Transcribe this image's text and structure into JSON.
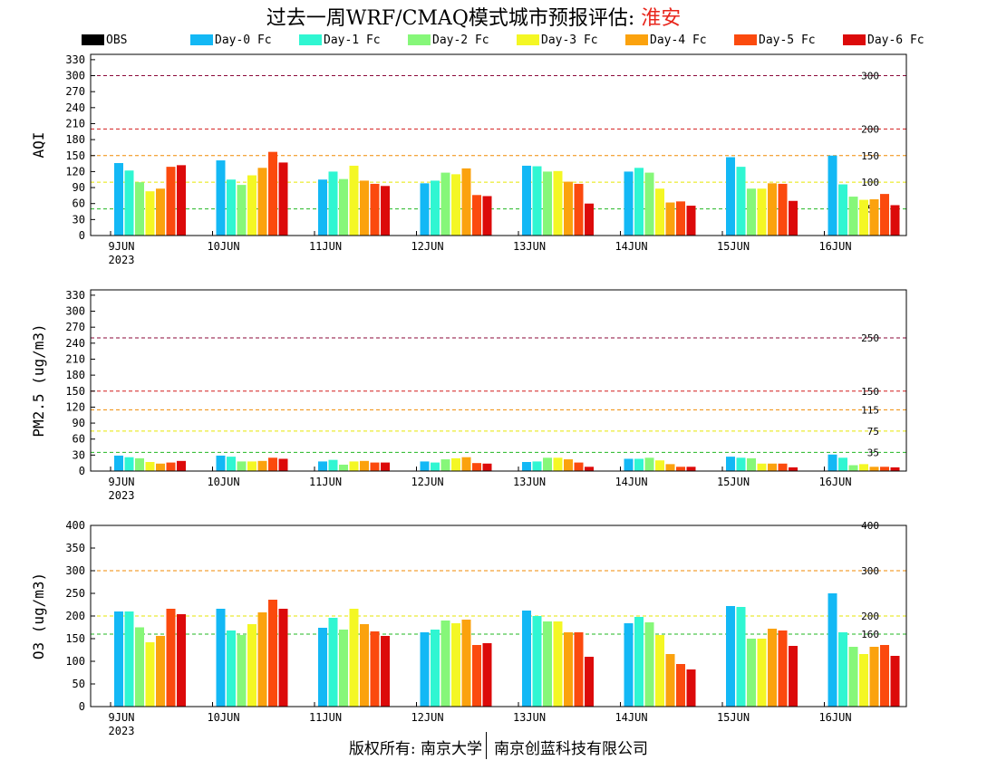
{
  "header": {
    "title_prefix": "过去一周WRF/CMAQ模式城市预报评估: ",
    "city": "淮安"
  },
  "legend": [
    {
      "name": "OBS",
      "color": "#000000"
    },
    {
      "name": "Day-0 Fc",
      "color": "#13b8f5"
    },
    {
      "name": "Day-1 Fc",
      "color": "#30f6d2"
    },
    {
      "name": "Day-2 Fc",
      "color": "#86f779"
    },
    {
      "name": "Day-3 Fc",
      "color": "#f4f724"
    },
    {
      "name": "Day-4 Fc",
      "color": "#fba20e"
    },
    {
      "name": "Day-5 Fc",
      "color": "#fb4a0e"
    },
    {
      "name": "Day-6 Fc",
      "color": "#dc0a0a"
    }
  ],
  "footer": {
    "left": "版权所有: 南京大学",
    "right": "南京创蓝科技有限公司"
  },
  "chart_data": [
    {
      "type": "bar",
      "ylabel": "AQI",
      "ylim": [
        0,
        340
      ],
      "yticks": [
        0,
        30,
        60,
        90,
        120,
        150,
        180,
        210,
        240,
        270,
        300,
        330
      ],
      "categories": [
        "9JUN",
        "10JUN",
        "11JUN",
        "12JUN",
        "13JUN",
        "14JUN",
        "15JUN",
        "16JUN"
      ],
      "first_category_year": "2023",
      "thresholds": [
        {
          "value": 50,
          "label": "50",
          "color": "#22b822"
        },
        {
          "value": 100,
          "label": "100",
          "color": "#e6e600"
        },
        {
          "value": 150,
          "label": "150",
          "color": "#f08a00"
        },
        {
          "value": 200,
          "label": "200",
          "color": "#d21c1c"
        },
        {
          "value": 300,
          "label": "300",
          "color": "#8b0a3a"
        }
      ],
      "series": [
        {
          "name": "OBS",
          "values": [
            null,
            null,
            null,
            null,
            null,
            null,
            null,
            null
          ]
        },
        {
          "name": "Day-0 Fc",
          "values": [
            136,
            141,
            105,
            98,
            131,
            120,
            147,
            150
          ]
        },
        {
          "name": "Day-1 Fc",
          "values": [
            122,
            105,
            120,
            103,
            130,
            127,
            129,
            96
          ]
        },
        {
          "name": "Day-2 Fc",
          "values": [
            100,
            95,
            106,
            118,
            120,
            118,
            88,
            73
          ]
        },
        {
          "name": "Day-3 Fc",
          "values": [
            83,
            113,
            131,
            115,
            121,
            88,
            88,
            67
          ]
        },
        {
          "name": "Day-4 Fc",
          "values": [
            88,
            127,
            103,
            126,
            101,
            62,
            98,
            68
          ]
        },
        {
          "name": "Day-5 Fc",
          "values": [
            129,
            157,
            97,
            76,
            97,
            64,
            97,
            78
          ]
        },
        {
          "name": "Day-6 Fc",
          "values": [
            132,
            137,
            93,
            74,
            60,
            56,
            65,
            57
          ]
        }
      ]
    },
    {
      "type": "bar",
      "ylabel": "PM2.5 (ug/m3)",
      "ylim": [
        0,
        340
      ],
      "yticks": [
        0,
        30,
        60,
        90,
        120,
        150,
        180,
        210,
        240,
        270,
        300,
        330
      ],
      "categories": [
        "9JUN",
        "10JUN",
        "11JUN",
        "12JUN",
        "13JUN",
        "14JUN",
        "15JUN",
        "16JUN"
      ],
      "first_category_year": "2023",
      "thresholds": [
        {
          "value": 35,
          "label": "35",
          "color": "#22b822"
        },
        {
          "value": 75,
          "label": "75",
          "color": "#e6e600"
        },
        {
          "value": 115,
          "label": "115",
          "color": "#f08a00"
        },
        {
          "value": 150,
          "label": "150",
          "color": "#d21c1c"
        },
        {
          "value": 250,
          "label": "250",
          "color": "#8b0a3a"
        }
      ],
      "series": [
        {
          "name": "OBS",
          "values": [
            null,
            null,
            null,
            null,
            null,
            null,
            null,
            null
          ]
        },
        {
          "name": "Day-0 Fc",
          "values": [
            29,
            29,
            18,
            18,
            17,
            23,
            27,
            31
          ]
        },
        {
          "name": "Day-1 Fc",
          "values": [
            26,
            27,
            21,
            16,
            18,
            23,
            25,
            25
          ]
        },
        {
          "name": "Day-2 Fc",
          "values": [
            24,
            18,
            12,
            22,
            25,
            25,
            24,
            11
          ]
        },
        {
          "name": "Day-3 Fc",
          "values": [
            17,
            18,
            18,
            24,
            25,
            20,
            14,
            13
          ]
        },
        {
          "name": "Day-4 Fc",
          "values": [
            14,
            19,
            19,
            26,
            22,
            13,
            14,
            8
          ]
        },
        {
          "name": "Day-5 Fc",
          "values": [
            16,
            25,
            16,
            15,
            16,
            8,
            14,
            8
          ]
        },
        {
          "name": "Day-6 Fc",
          "values": [
            19,
            23,
            16,
            14,
            8,
            8,
            7,
            7
          ]
        }
      ]
    },
    {
      "type": "bar",
      "ylabel": "O3 (ug/m3)",
      "ylim": [
        0,
        400
      ],
      "yticks": [
        0,
        50,
        100,
        150,
        200,
        250,
        300,
        350,
        400
      ],
      "categories": [
        "9JUN",
        "10JUN",
        "11JUN",
        "12JUN",
        "13JUN",
        "14JUN",
        "15JUN",
        "16JUN"
      ],
      "first_category_year": "2023",
      "thresholds": [
        {
          "value": 160,
          "label": "160",
          "color": "#22b822"
        },
        {
          "value": 200,
          "label": "200",
          "color": "#e6e600"
        },
        {
          "value": 300,
          "label": "300",
          "color": "#f08a00"
        },
        {
          "value": 400,
          "label": "400",
          "color": "#d21c1c"
        }
      ],
      "series": [
        {
          "name": "OBS",
          "values": [
            null,
            null,
            null,
            null,
            null,
            null,
            null,
            null
          ]
        },
        {
          "name": "Day-0 Fc",
          "values": [
            210,
            216,
            174,
            164,
            212,
            184,
            222,
            250
          ]
        },
        {
          "name": "Day-1 Fc",
          "values": [
            210,
            168,
            196,
            170,
            200,
            198,
            220,
            164
          ]
        },
        {
          "name": "Day-2 Fc",
          "values": [
            175,
            158,
            170,
            190,
            188,
            186,
            150,
            132
          ]
        },
        {
          "name": "Day-3 Fc",
          "values": [
            142,
            182,
            216,
            184,
            188,
            158,
            150,
            116
          ]
        },
        {
          "name": "Day-4 Fc",
          "values": [
            156,
            208,
            182,
            192,
            164,
            116,
            172,
            132
          ]
        },
        {
          "name": "Day-5 Fc",
          "values": [
            216,
            236,
            166,
            136,
            164,
            94,
            168,
            136
          ]
        },
        {
          "name": "Day-6 Fc",
          "values": [
            204,
            216,
            156,
            140,
            110,
            82,
            134,
            112
          ]
        }
      ]
    }
  ]
}
